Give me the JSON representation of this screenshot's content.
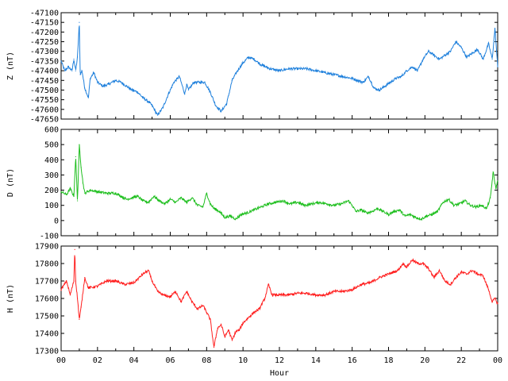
{
  "chart_data": [
    {
      "type": "line",
      "ylabel": "Z (nT)",
      "ylim": [
        -47650,
        -47100
      ],
      "yticks": [
        -47100,
        -47150,
        -47200,
        -47250,
        -47300,
        -47350,
        -47400,
        -47450,
        -47500,
        -47550,
        -47600,
        -47650
      ],
      "xlim": [
        0,
        24
      ],
      "grid": false,
      "series": [
        {
          "color": "#1f80dc",
          "x": [
            0,
            0.2,
            0.4,
            0.6,
            0.7,
            0.8,
            0.9,
            1.0,
            1.05,
            1.15,
            1.3,
            1.5,
            1.6,
            1.8,
            2.0,
            2.3,
            2.6,
            3.0,
            3.3,
            3.6,
            3.9,
            4.2,
            4.5,
            4.8,
            5.0,
            5.3,
            5.6,
            5.9,
            6.2,
            6.5,
            6.8,
            6.9,
            7.0,
            7.3,
            7.6,
            7.9,
            8.2,
            8.5,
            8.8,
            9.1,
            9.4,
            9.7,
            10.0,
            10.3,
            10.6,
            11.0,
            11.5,
            12.0,
            12.5,
            13.0,
            13.5,
            14.0,
            14.5,
            15.0,
            15.5,
            16.0,
            16.3,
            16.6,
            16.9,
            17.2,
            17.5,
            17.8,
            18.1,
            18.4,
            18.7,
            19.0,
            19.3,
            19.6,
            19.9,
            20.2,
            20.5,
            20.8,
            21.1,
            21.4,
            21.7,
            22.0,
            22.3,
            22.6,
            22.9,
            23.2,
            23.5,
            23.7,
            23.85,
            24.0
          ],
          "values": [
            -47350,
            -47400,
            -47380,
            -47400,
            -47340,
            -47400,
            -47330,
            -47150,
            -47420,
            -47400,
            -47490,
            -47540,
            -47440,
            -47410,
            -47460,
            -47480,
            -47470,
            -47450,
            -47460,
            -47480,
            -47500,
            -47510,
            -47540,
            -47560,
            -47580,
            -47630,
            -47590,
            -47520,
            -47460,
            -47430,
            -47520,
            -47470,
            -47500,
            -47460,
            -47460,
            -47460,
            -47510,
            -47580,
            -47610,
            -47570,
            -47450,
            -47400,
            -47360,
            -47330,
            -47340,
            -47370,
            -47390,
            -47400,
            -47390,
            -47390,
            -47390,
            -47400,
            -47410,
            -47420,
            -47430,
            -47440,
            -47450,
            -47460,
            -47430,
            -47490,
            -47500,
            -47480,
            -47460,
            -47440,
            -47430,
            -47400,
            -47380,
            -47400,
            -47340,
            -47300,
            -47320,
            -47340,
            -47320,
            -47300,
            -47250,
            -47280,
            -47330,
            -47310,
            -47290,
            -47340,
            -47260,
            -47340,
            -47180,
            -47380
          ]
        }
      ]
    },
    {
      "type": "line",
      "ylabel": "D (nT)",
      "ylim": [
        -100,
        600
      ],
      "yticks": [
        600,
        500,
        400,
        300,
        200,
        100,
        0,
        -100
      ],
      "xlim": [
        0,
        24
      ],
      "grid": false,
      "series": [
        {
          "color": "#1fbf1f",
          "x": [
            0,
            0.3,
            0.5,
            0.7,
            0.8,
            0.9,
            1.0,
            1.1,
            1.2,
            1.3,
            1.6,
            2.0,
            2.5,
            3.0,
            3.3,
            3.6,
            3.9,
            4.2,
            4.5,
            4.8,
            5.1,
            5.4,
            5.7,
            6.0,
            6.3,
            6.6,
            6.9,
            7.2,
            7.5,
            7.8,
            8.0,
            8.2,
            8.4,
            8.7,
            9.0,
            9.3,
            9.6,
            9.9,
            10.2,
            10.6,
            11.0,
            11.4,
            11.8,
            12.2,
            12.6,
            13.0,
            13.4,
            13.8,
            14.2,
            14.6,
            15.0,
            15.4,
            15.8,
            16.0,
            16.2,
            16.5,
            16.8,
            17.1,
            17.4,
            17.7,
            18.0,
            18.3,
            18.6,
            18.9,
            19.2,
            19.5,
            19.8,
            20.1,
            20.4,
            20.7,
            21.0,
            21.3,
            21.6,
            21.9,
            22.2,
            22.5,
            22.8,
            23.1,
            23.4,
            23.6,
            23.75,
            23.9,
            24.0
          ],
          "values": [
            190,
            170,
            210,
            160,
            420,
            130,
            500,
            350,
            250,
            180,
            200,
            190,
            180,
            180,
            160,
            140,
            150,
            160,
            130,
            120,
            160,
            130,
            110,
            140,
            120,
            150,
            120,
            150,
            100,
            90,
            180,
            110,
            80,
            60,
            20,
            30,
            10,
            40,
            50,
            70,
            90,
            110,
            120,
            130,
            110,
            120,
            100,
            110,
            120,
            110,
            100,
            110,
            130,
            100,
            60,
            70,
            50,
            60,
            80,
            60,
            40,
            60,
            70,
            30,
            40,
            20,
            10,
            30,
            40,
            60,
            120,
            140,
            100,
            110,
            130,
            100,
            90,
            100,
            80,
            150,
            320,
            210,
            260
          ]
        }
      ]
    },
    {
      "type": "line",
      "ylabel": "H (nT)",
      "xlabel": "Hour",
      "ylim": [
        17300,
        17900
      ],
      "yticks": [
        17900,
        17800,
        17700,
        17600,
        17500,
        17400,
        17300
      ],
      "xlim": [
        0,
        24
      ],
      "xticks": [
        "00",
        "02",
        "04",
        "06",
        "08",
        "10",
        "12",
        "14",
        "16",
        "18",
        "20",
        "22",
        "00"
      ],
      "grid": false,
      "series": [
        {
          "color": "#ff1f1f",
          "x": [
            0,
            0.3,
            0.5,
            0.7,
            0.75,
            0.8,
            0.9,
            1.0,
            1.1,
            1.3,
            1.5,
            2.0,
            2.5,
            3.0,
            3.5,
            4.0,
            4.5,
            4.8,
            5.0,
            5.3,
            5.6,
            6.0,
            6.3,
            6.6,
            6.9,
            7.2,
            7.5,
            7.8,
            8.0,
            8.2,
            8.4,
            8.6,
            8.8,
            9.0,
            9.2,
            9.4,
            9.6,
            9.8,
            10.0,
            10.3,
            10.6,
            10.9,
            11.2,
            11.4,
            11.6,
            12.0,
            12.5,
            13.0,
            13.5,
            14.0,
            14.5,
            15.0,
            15.5,
            16.0,
            16.5,
            17.0,
            17.5,
            18.0,
            18.5,
            18.8,
            19.0,
            19.3,
            19.6,
            19.9,
            20.2,
            20.5,
            20.8,
            21.1,
            21.4,
            21.7,
            22.0,
            22.3,
            22.6,
            22.9,
            23.2,
            23.5,
            23.7,
            23.85,
            24.0
          ],
          "values": [
            17650,
            17700,
            17620,
            17700,
            17880,
            17700,
            17600,
            17480,
            17550,
            17720,
            17660,
            17670,
            17700,
            17700,
            17680,
            17690,
            17740,
            17760,
            17700,
            17640,
            17620,
            17610,
            17640,
            17580,
            17640,
            17580,
            17540,
            17560,
            17520,
            17480,
            17320,
            17430,
            17450,
            17380,
            17420,
            17360,
            17410,
            17420,
            17460,
            17490,
            17520,
            17540,
            17600,
            17680,
            17620,
            17620,
            17620,
            17630,
            17630,
            17620,
            17620,
            17640,
            17640,
            17650,
            17680,
            17690,
            17720,
            17740,
            17760,
            17800,
            17780,
            17820,
            17800,
            17800,
            17770,
            17720,
            17760,
            17700,
            17680,
            17720,
            17750,
            17740,
            17760,
            17740,
            17730,
            17650,
            17580,
            17600,
            17570
          ]
        }
      ]
    }
  ]
}
